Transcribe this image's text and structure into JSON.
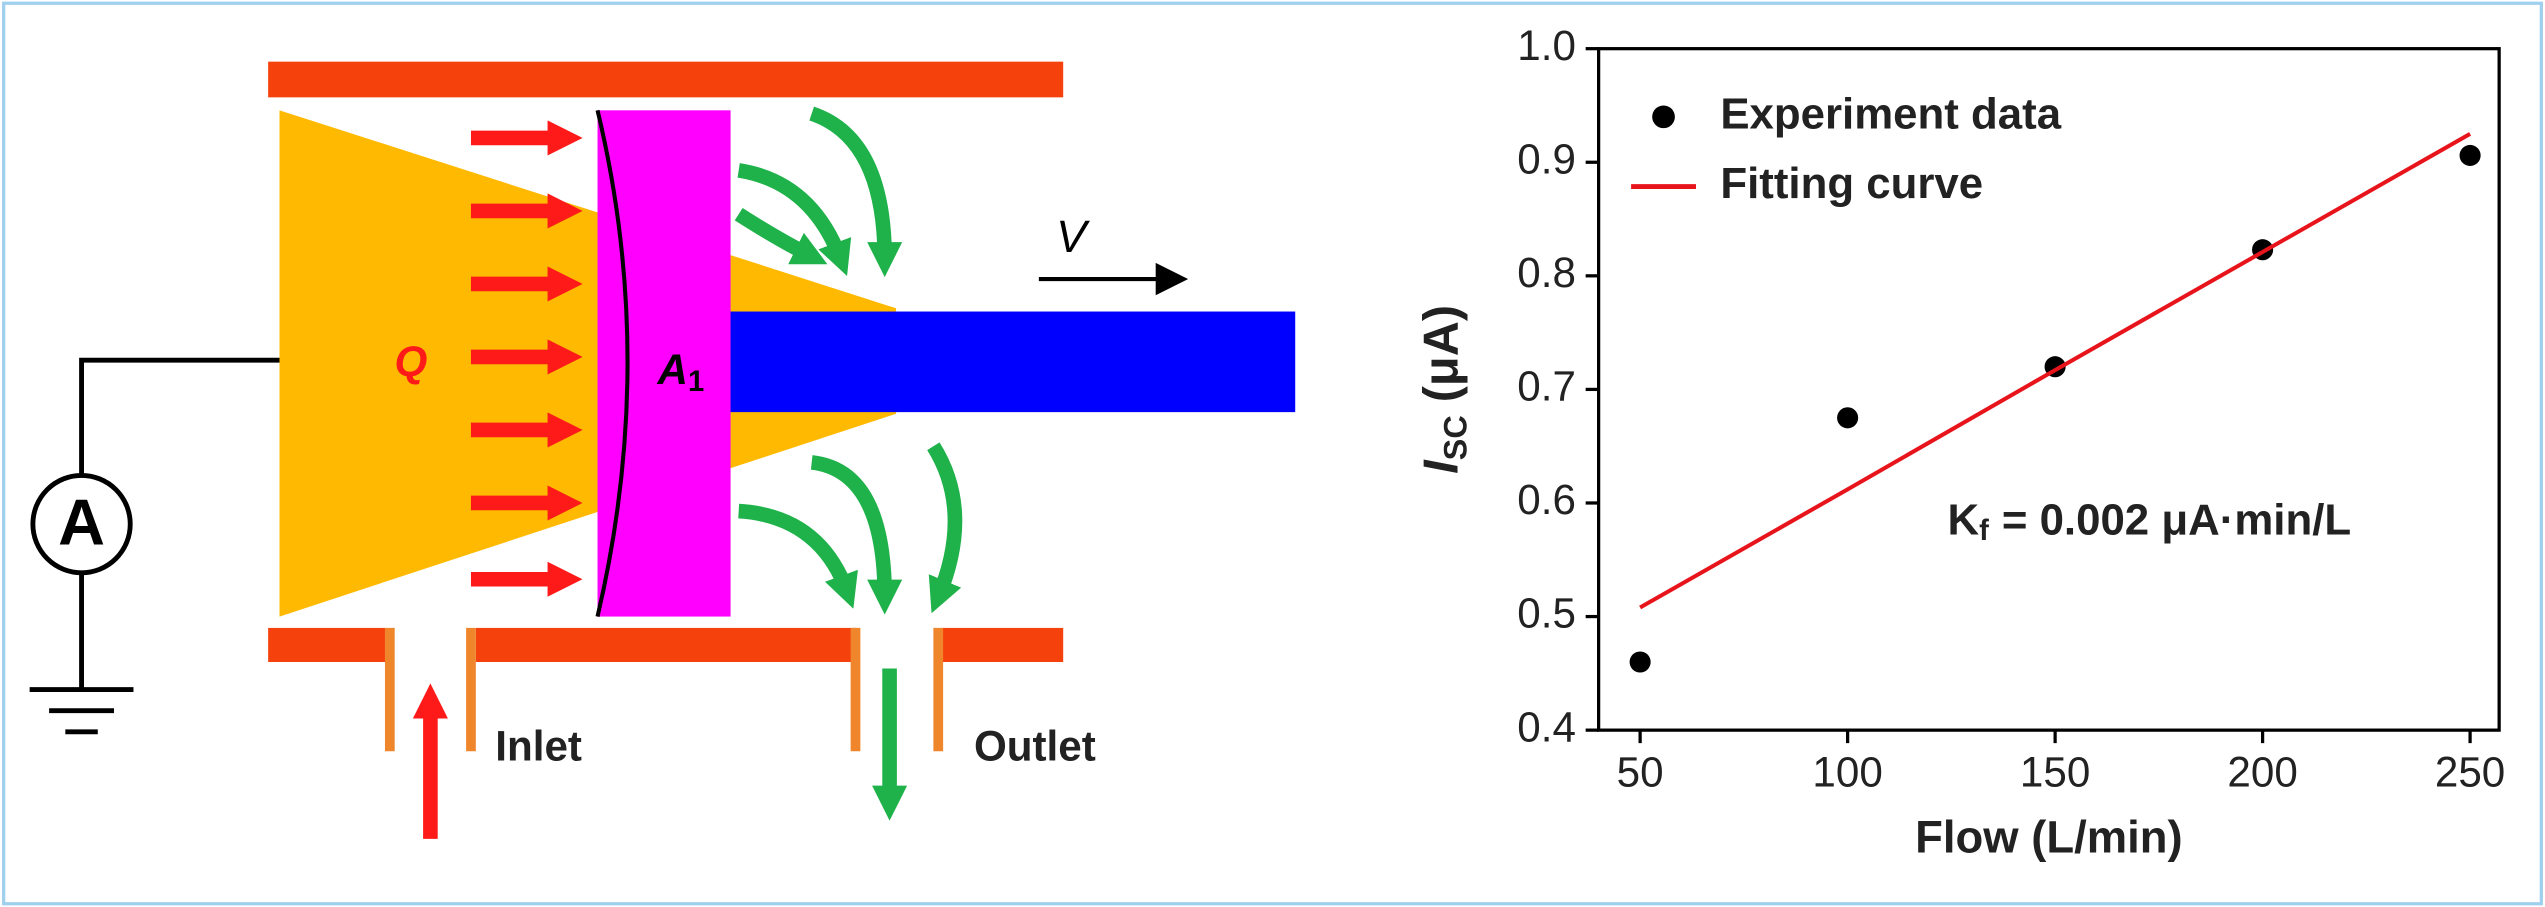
{
  "diagram": {
    "labels": {
      "charge": "Q",
      "plate": "A",
      "plate_sub": "1",
      "velocity": "V",
      "inlet": "Inlet",
      "outlet": "Outlet",
      "ammeter": "A"
    }
  },
  "chart_data": {
    "type": "scatter",
    "x": [
      50,
      100,
      150,
      200,
      250
    ],
    "series": [
      {
        "name": "Experiment data",
        "color": "#000000",
        "type": "scatter",
        "values": [
          0.46,
          0.675,
          0.72,
          0.823,
          0.906
        ]
      },
      {
        "name": "Fitting curve",
        "color": "#e8141c",
        "type": "line",
        "values": [
          0.508,
          0.612,
          0.717,
          0.821,
          0.925
        ]
      }
    ],
    "xlabel": "Flow (L/min)",
    "ylabel": "I",
    "ylabel_sub": "SC",
    "ylabel_unit": "(μA)",
    "annotation": {
      "main": "K",
      "sub": "f",
      "rest": "= 0.002 μA·min/L"
    },
    "xlim": [
      40,
      257
    ],
    "ylim": [
      0.4,
      1.0
    ],
    "xticks": [
      50,
      100,
      150,
      200,
      250
    ],
    "yticks": [
      0.4,
      0.5,
      0.6,
      0.7,
      0.8,
      0.9,
      {
        "value": 1.0,
        "label": "1.0"
      }
    ],
    "legend": "top-left",
    "grid": false
  }
}
